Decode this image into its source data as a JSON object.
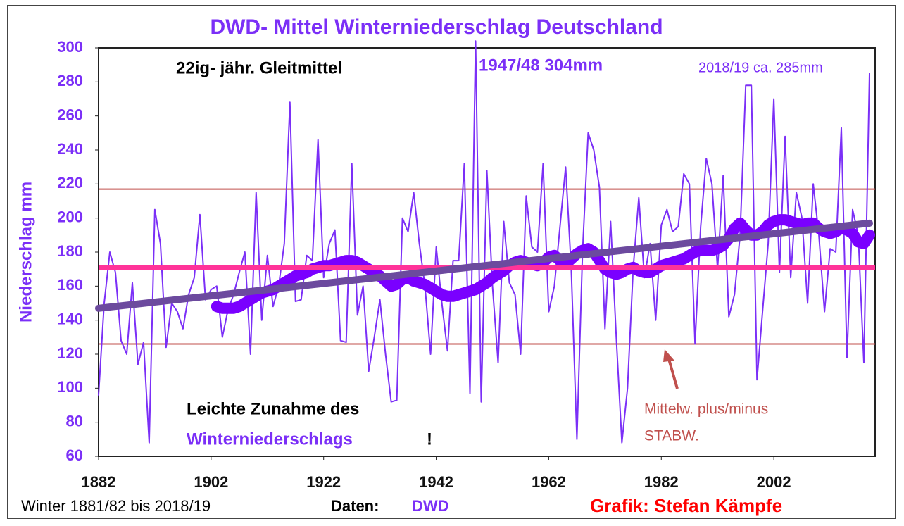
{
  "chart_data": {
    "type": "line",
    "title": "DWD- Mittel Winterniederschlag Deutschland",
    "y_label": "Niederschlag mm",
    "x": [
      1882,
      1883,
      1884,
      1885,
      1886,
      1887,
      1888,
      1889,
      1890,
      1891,
      1892,
      1893,
      1894,
      1895,
      1896,
      1897,
      1898,
      1899,
      1900,
      1901,
      1902,
      1903,
      1904,
      1905,
      1906,
      1907,
      1908,
      1909,
      1910,
      1911,
      1912,
      1913,
      1914,
      1915,
      1916,
      1917,
      1918,
      1919,
      1920,
      1921,
      1922,
      1923,
      1924,
      1925,
      1926,
      1927,
      1928,
      1929,
      1930,
      1931,
      1932,
      1933,
      1934,
      1935,
      1936,
      1937,
      1938,
      1939,
      1940,
      1941,
      1942,
      1943,
      1944,
      1945,
      1946,
      1947,
      1948,
      1949,
      1950,
      1951,
      1952,
      1953,
      1954,
      1955,
      1956,
      1957,
      1958,
      1959,
      1960,
      1961,
      1962,
      1963,
      1964,
      1965,
      1966,
      1967,
      1968,
      1969,
      1970,
      1971,
      1972,
      1973,
      1974,
      1975,
      1976,
      1977,
      1978,
      1979,
      1980,
      1981,
      1982,
      1983,
      1984,
      1985,
      1986,
      1987,
      1988,
      1989,
      1990,
      1991,
      1992,
      1993,
      1994,
      1995,
      1996,
      1997,
      1998,
      1999,
      2000,
      2001,
      2002,
      2003,
      2004,
      2005,
      2006,
      2007,
      2008,
      2009,
      2010,
      2011,
      2012,
      2013,
      2014,
      2015,
      2016,
      2017,
      2018,
      2019
    ],
    "series": [
      {
        "name": "Winterniederschlag",
        "color": "#7b2ff7",
        "width": 2,
        "values": [
          96,
          150,
          180,
          168,
          128,
          120,
          162,
          114,
          127,
          68,
          205,
          185,
          124,
          150,
          145,
          135,
          155,
          165,
          202,
          152,
          158,
          160,
          130,
          146,
          155,
          168,
          180,
          120,
          215,
          140,
          178,
          148,
          160,
          185,
          268,
          151,
          152,
          178,
          175,
          246,
          165,
          185,
          193,
          128,
          127,
          232,
          143,
          160,
          110,
          130,
          152,
          120,
          92,
          93,
          200,
          192,
          215,
          185,
          160,
          120,
          183,
          150,
          122,
          175,
          175,
          232,
          97,
          304,
          92,
          228,
          160,
          115,
          198,
          162,
          155,
          120,
          213,
          183,
          180,
          232,
          145,
          160,
          195,
          230,
          170,
          70,
          180,
          250,
          240,
          218,
          135,
          198,
          130,
          68,
          100,
          170,
          212,
          165,
          185,
          140,
          196,
          205,
          192,
          195,
          226,
          220,
          126,
          195,
          235,
          220,
          170,
          225,
          142,
          155,
          190,
          278,
          278,
          105,
          145,
          185,
          270,
          168,
          248,
          165,
          215,
          200,
          150,
          220,
          190,
          145,
          182,
          180,
          253,
          118,
          205,
          190,
          115,
          285
        ]
      },
      {
        "name": "22ig- jähr. Gleitmittel",
        "color": "#7a00ff",
        "width": 16,
        "values": [
          null,
          null,
          null,
          null,
          null,
          null,
          null,
          null,
          null,
          null,
          null,
          null,
          null,
          null,
          null,
          null,
          null,
          null,
          null,
          null,
          null,
          148,
          147,
          147,
          147,
          148,
          150,
          152,
          154,
          156,
          157,
          158,
          160,
          162,
          164,
          166,
          167,
          168,
          170,
          171,
          172,
          172,
          173,
          174,
          175,
          175,
          174,
          172,
          170,
          168,
          166,
          163,
          160,
          161,
          164,
          165,
          163,
          162,
          161,
          159,
          157,
          155,
          154,
          154,
          155,
          156,
          157,
          158,
          160,
          162,
          165,
          167,
          169,
          172,
          174,
          175,
          174,
          173,
          172,
          174,
          177,
          178,
          175,
          173,
          176,
          179,
          181,
          182,
          180,
          175,
          170,
          168,
          167,
          168,
          170,
          171,
          169,
          168,
          168,
          170,
          172,
          173,
          174,
          175,
          176,
          178,
          180,
          181,
          181,
          181,
          182,
          184,
          188,
          194,
          197,
          193,
          190,
          190,
          192,
          196,
          198,
          199,
          199,
          198,
          197,
          196,
          197,
          197,
          194,
          192,
          191,
          192,
          194,
          193,
          191,
          186,
          185,
          190
        ]
      }
    ],
    "trend": {
      "color": "#6c4a9e",
      "x": [
        1882,
        2019
      ],
      "values": [
        147,
        197
      ]
    },
    "reference_lines": [
      {
        "value": 217,
        "color": "#c0504d",
        "width": 2
      },
      {
        "value": 126,
        "color": "#c0504d",
        "width": 2
      },
      {
        "value": 171,
        "color": "#ff3399",
        "width": 7
      }
    ],
    "xlim": [
      1882,
      2020
    ],
    "xticks": [
      1882,
      1902,
      1922,
      1942,
      1962,
      1982,
      2002
    ],
    "ylim": [
      60,
      300
    ],
    "yticks": [
      60,
      80,
      100,
      120,
      140,
      160,
      180,
      200,
      220,
      240,
      260,
      280,
      300
    ],
    "annotations": [
      "22ig- jähr. Gleitmittel",
      "1947/48 304mm",
      "2018/19 ca. 285mm",
      "Leichte Zunahme des",
      "Winterniederschlags",
      "!",
      "Mittelw. plus/minus",
      "STABW."
    ],
    "footer": {
      "period": "Winter 1881/82 bis 2018/19",
      "data_label": "Daten:",
      "data_source": "DWD",
      "credit": "Grafik: Stefan Kämpfe"
    }
  }
}
